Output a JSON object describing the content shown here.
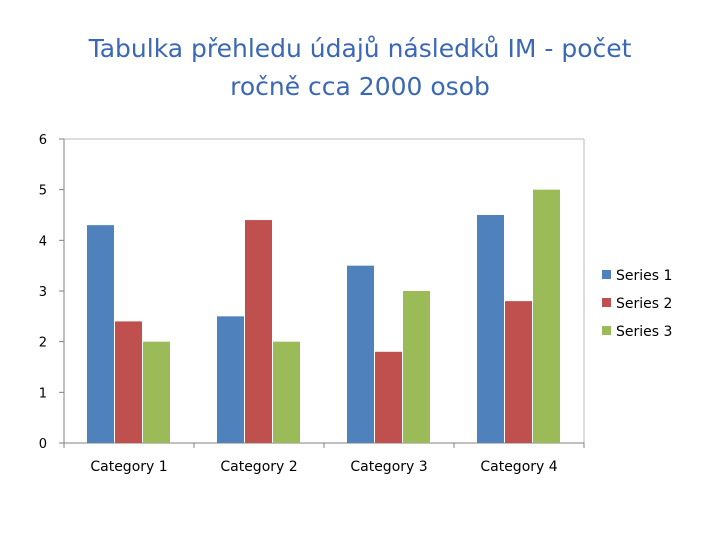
{
  "chart_data": {
    "type": "bar",
    "title": [
      "Tabulka přehledu údajů následků IM - počet",
      "ročně cca 2000 osob"
    ],
    "xlabel": "",
    "ylabel": "",
    "categories": [
      "Category 1",
      "Category 2",
      "Category 3",
      "Category 4"
    ],
    "series": [
      {
        "name": "Series 1",
        "values": [
          4.3,
          2.5,
          3.5,
          4.5
        ],
        "color": "#4f81bd"
      },
      {
        "name": "Series 2",
        "values": [
          2.4,
          4.4,
          1.8,
          2.8
        ],
        "color": "#c0504d"
      },
      {
        "name": "Series 3",
        "values": [
          2,
          2,
          3,
          5
        ],
        "color": "#9bbb59"
      }
    ],
    "ylim": [
      0,
      6
    ],
    "yticks": [
      0,
      1,
      2,
      3,
      4,
      5,
      6
    ],
    "grid": false,
    "legend": "right"
  }
}
